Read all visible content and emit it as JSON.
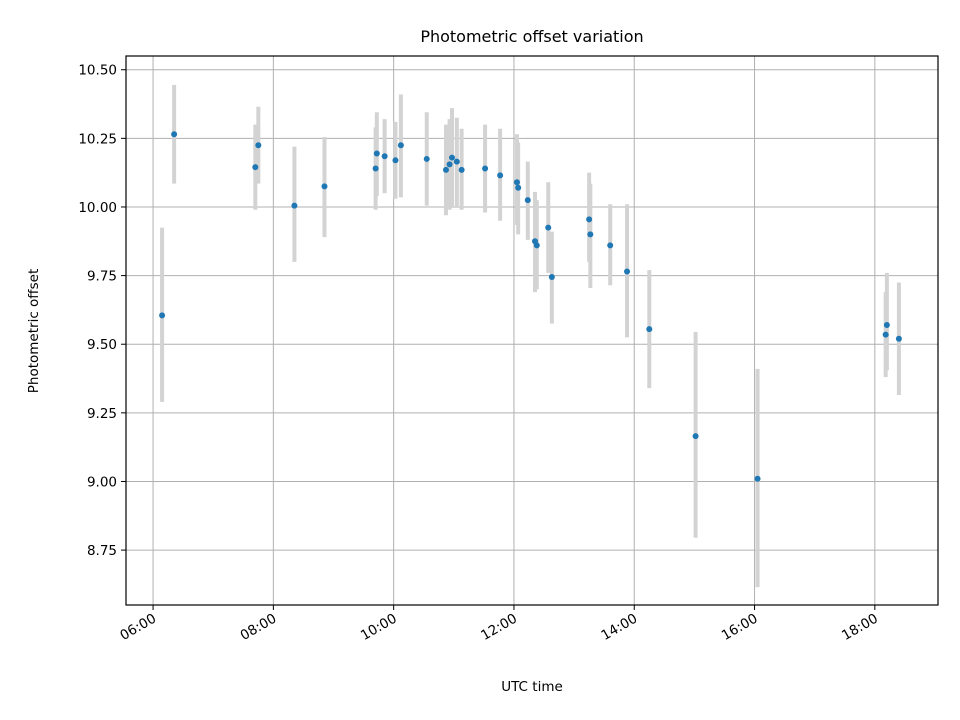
{
  "chart_data": {
    "type": "scatter",
    "title": "Photometric offset variation",
    "xlabel": "UTC time",
    "ylabel": "Photometric offset",
    "x_unit": "hours",
    "xlim": [
      5.55,
      19.05
    ],
    "ylim": [
      8.55,
      10.55
    ],
    "x_ticks": [
      {
        "value": 6,
        "label": "06:00"
      },
      {
        "value": 8,
        "label": "08:00"
      },
      {
        "value": 10,
        "label": "10:00"
      },
      {
        "value": 12,
        "label": "12:00"
      },
      {
        "value": 14,
        "label": "14:00"
      },
      {
        "value": 16,
        "label": "16:00"
      },
      {
        "value": 18,
        "label": "18:00"
      }
    ],
    "y_ticks": [
      {
        "value": 8.75,
        "label": "8.75"
      },
      {
        "value": 9.0,
        "label": "9.00"
      },
      {
        "value": 9.25,
        "label": "9.25"
      },
      {
        "value": 9.5,
        "label": "9.50"
      },
      {
        "value": 9.75,
        "label": "9.75"
      },
      {
        "value": 10.0,
        "label": "10.00"
      },
      {
        "value": 10.25,
        "label": "10.25"
      },
      {
        "value": 10.5,
        "label": "10.50"
      }
    ],
    "grid": true,
    "colors": {
      "point": "#1f77b4",
      "errorbar": "#d3d3d3",
      "grid": "#b0b0b0"
    },
    "points": [
      {
        "x": 6.15,
        "y": 9.605,
        "lo": 9.29,
        "hi": 9.925
      },
      {
        "x": 6.35,
        "y": 10.265,
        "lo": 10.085,
        "hi": 10.445
      },
      {
        "x": 7.7,
        "y": 10.145,
        "lo": 9.99,
        "hi": 10.3
      },
      {
        "x": 7.75,
        "y": 10.225,
        "lo": 10.085,
        "hi": 10.365
      },
      {
        "x": 8.35,
        "y": 10.005,
        "lo": 9.8,
        "hi": 10.22
      },
      {
        "x": 8.85,
        "y": 10.075,
        "lo": 9.89,
        "hi": 10.255
      },
      {
        "x": 9.7,
        "y": 10.14,
        "lo": 9.99,
        "hi": 10.29
      },
      {
        "x": 9.72,
        "y": 10.195,
        "lo": 10.04,
        "hi": 10.345
      },
      {
        "x": 9.85,
        "y": 10.185,
        "lo": 10.05,
        "hi": 10.32
      },
      {
        "x": 10.03,
        "y": 10.17,
        "lo": 10.03,
        "hi": 10.31
      },
      {
        "x": 10.12,
        "y": 10.225,
        "lo": 10.035,
        "hi": 10.41
      },
      {
        "x": 10.55,
        "y": 10.175,
        "lo": 10.005,
        "hi": 10.345
      },
      {
        "x": 10.87,
        "y": 10.135,
        "lo": 9.97,
        "hi": 10.3
      },
      {
        "x": 10.93,
        "y": 10.155,
        "lo": 9.99,
        "hi": 10.32
      },
      {
        "x": 10.97,
        "y": 10.18,
        "lo": 10.0,
        "hi": 10.36
      },
      {
        "x": 11.05,
        "y": 10.165,
        "lo": 10.0,
        "hi": 10.325
      },
      {
        "x": 11.13,
        "y": 10.135,
        "lo": 9.99,
        "hi": 10.285
      },
      {
        "x": 11.52,
        "y": 10.14,
        "lo": 9.98,
        "hi": 10.3
      },
      {
        "x": 11.77,
        "y": 10.115,
        "lo": 9.95,
        "hi": 10.285
      },
      {
        "x": 12.05,
        "y": 10.09,
        "lo": 9.935,
        "hi": 10.265
      },
      {
        "x": 12.07,
        "y": 10.07,
        "lo": 9.9,
        "hi": 10.235
      },
      {
        "x": 12.23,
        "y": 10.025,
        "lo": 9.88,
        "hi": 10.165
      },
      {
        "x": 12.35,
        "y": 9.875,
        "lo": 9.69,
        "hi": 10.055
      },
      {
        "x": 12.38,
        "y": 9.86,
        "lo": 9.7,
        "hi": 10.025
      },
      {
        "x": 12.57,
        "y": 9.925,
        "lo": 9.76,
        "hi": 10.09
      },
      {
        "x": 12.63,
        "y": 9.745,
        "lo": 9.575,
        "hi": 9.91
      },
      {
        "x": 13.25,
        "y": 9.955,
        "lo": 9.8,
        "hi": 10.125
      },
      {
        "x": 13.27,
        "y": 9.9,
        "lo": 9.705,
        "hi": 10.085
      },
      {
        "x": 13.6,
        "y": 9.86,
        "lo": 9.715,
        "hi": 10.01
      },
      {
        "x": 13.88,
        "y": 9.765,
        "lo": 9.525,
        "hi": 10.01
      },
      {
        "x": 14.25,
        "y": 9.555,
        "lo": 9.34,
        "hi": 9.77
      },
      {
        "x": 15.02,
        "y": 9.165,
        "lo": 8.795,
        "hi": 9.545
      },
      {
        "x": 16.05,
        "y": 9.01,
        "lo": 8.615,
        "hi": 9.41
      },
      {
        "x": 18.18,
        "y": 9.535,
        "lo": 9.38,
        "hi": 9.69
      },
      {
        "x": 18.2,
        "y": 9.57,
        "lo": 9.405,
        "hi": 9.76
      },
      {
        "x": 18.4,
        "y": 9.52,
        "lo": 9.315,
        "hi": 9.725
      }
    ]
  }
}
